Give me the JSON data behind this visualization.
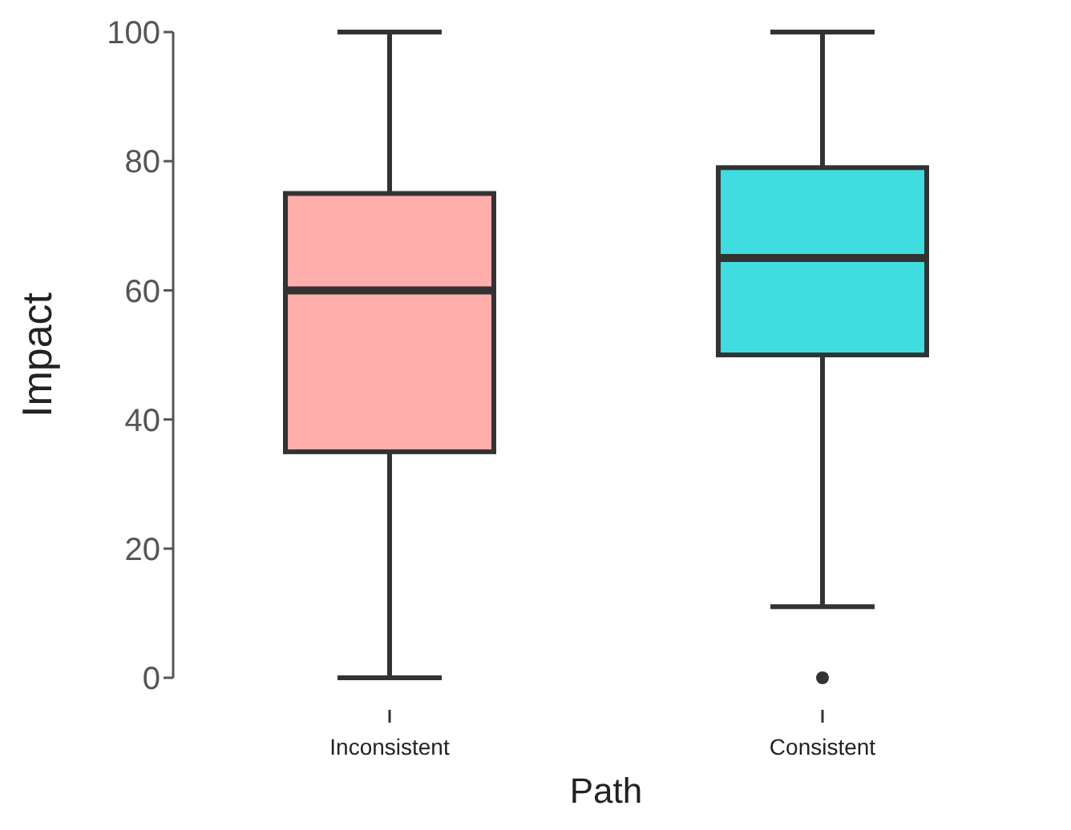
{
  "chart_data": {
    "type": "box",
    "xlabel": "Path",
    "ylabel": "Impact",
    "categories": [
      "Inconsistent",
      "Consistent"
    ],
    "colors": [
      "#ffaeab",
      "#40dde0"
    ],
    "boxes": [
      {
        "low": 0,
        "q1": 35,
        "median": 60,
        "q3": 75,
        "high": 100
      },
      {
        "low": 11,
        "q1": 50,
        "median": 65,
        "q3": 79,
        "high": 100,
        "outliers": [
          0
        ]
      }
    ],
    "ylim": [
      0,
      100
    ],
    "yticks": [
      0,
      20,
      40,
      60,
      80,
      100
    ],
    "grid": false,
    "legend": false
  }
}
